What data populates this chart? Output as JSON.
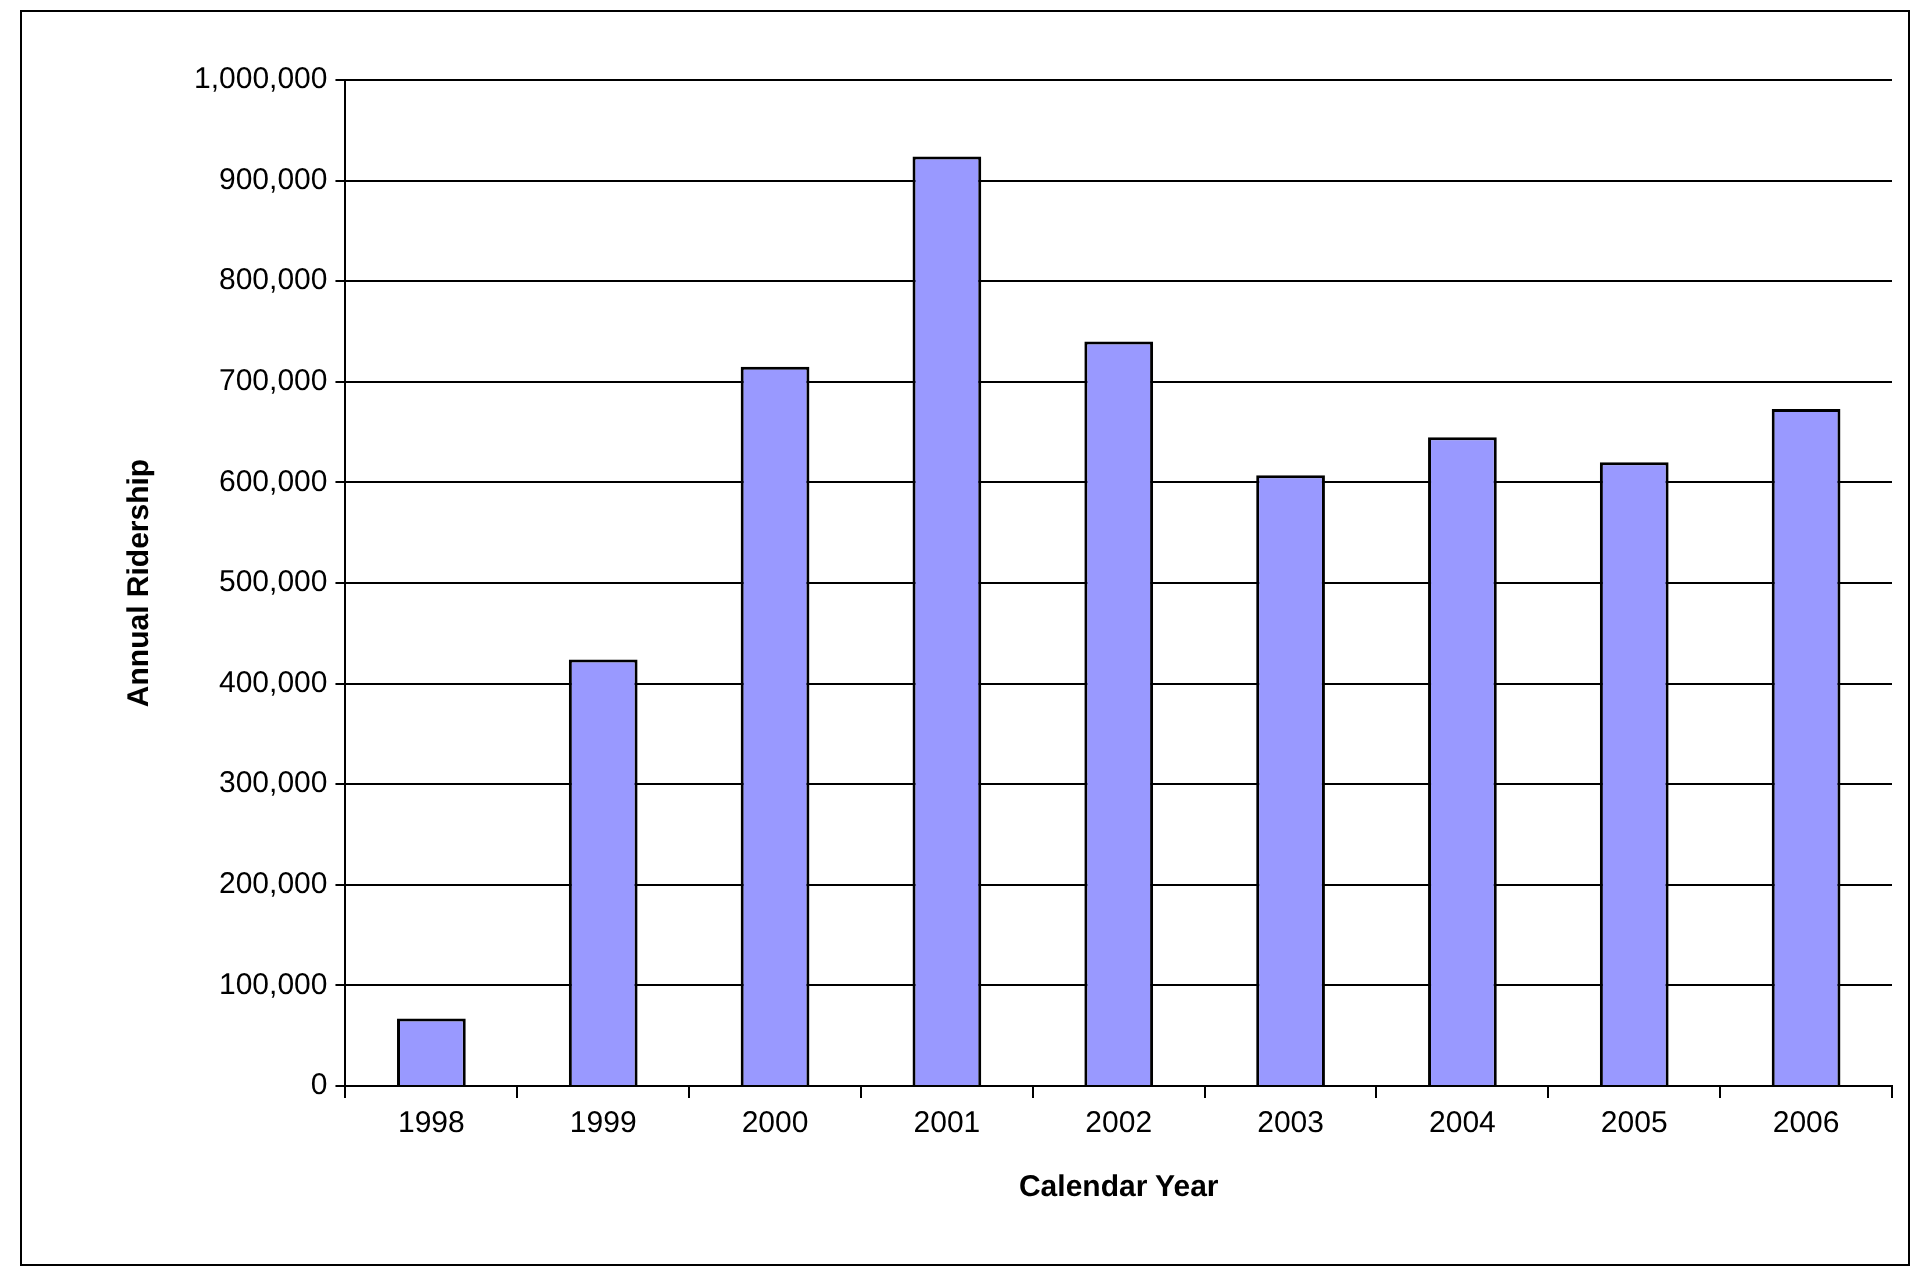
{
  "chart_data": {
    "type": "bar",
    "xlabel": "Calendar Year",
    "ylabel": "Annual Ridership",
    "categories": [
      "1998",
      "1999",
      "2000",
      "2001",
      "2002",
      "2003",
      "2004",
      "2005",
      "2006"
    ],
    "values": [
      67000,
      424000,
      715000,
      924000,
      740000,
      607000,
      645000,
      620000,
      673000
    ],
    "color": "#9999ff",
    "ylim": [
      0,
      1000000
    ],
    "yticks": [
      0,
      {
        "value": 100000,
        "label": "100,000"
      },
      {
        "value": 200000,
        "label": "200,000"
      },
      {
        "value": 300000,
        "label": "300,000"
      },
      {
        "value": 400000,
        "label": "400,000"
      },
      {
        "value": 500000,
        "label": "500,000"
      },
      {
        "value": 600000,
        "label": "600,000"
      },
      {
        "value": 700000,
        "label": "700,000"
      },
      {
        "value": 800000,
        "label": "800,000"
      },
      {
        "value": 900000,
        "label": "900,000"
      },
      {
        "value": 1000000,
        "label": "1,000,000"
      }
    ],
    "grid": "y",
    "legend": false
  }
}
